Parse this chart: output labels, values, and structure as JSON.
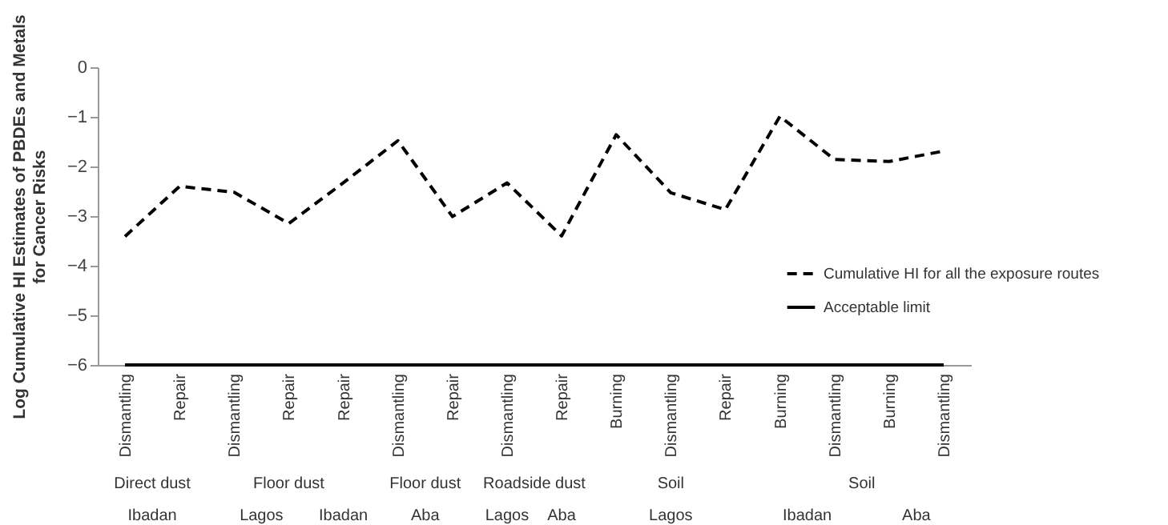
{
  "chart_data": {
    "type": "line",
    "ylabel": "Log Cumulative HI Estimates of PBDEs and Metals\nfor  Cancer Risks",
    "categories": [
      "Dismantling",
      "Repair",
      "Dismantling",
      "Repair",
      "Repair",
      "Dismantling",
      "Repair",
      "Dismantling",
      "Repair",
      "Burning",
      "Dismantling",
      "Repair",
      "Burning",
      "Dismantling",
      "Burning",
      "Dismantling"
    ],
    "series": [
      {
        "name": "Cumulative HI for all the exposure routes",
        "color": "#000000",
        "line_style": "dashed",
        "values": [
          -3.41,
          -2.4,
          -2.52,
          -3.15,
          -2.33,
          -1.48,
          -3.01,
          -2.33,
          -3.4,
          -1.36,
          -2.53,
          -2.87,
          -0.99,
          -1.86,
          -1.9,
          -1.69
        ]
      },
      {
        "name": "Acceptable limit",
        "color": "#000000",
        "line_style": "solid",
        "values": [
          -6,
          -6,
          -6,
          -6,
          -6,
          -6,
          -6,
          -6,
          -6,
          -6,
          -6,
          -6,
          -6,
          -6,
          -6,
          -6
        ]
      }
    ],
    "ylim": [
      -6,
      0
    ],
    "yticks": [
      0,
      -1,
      -2,
      -3,
      -4,
      -5,
      -6
    ],
    "grid": false,
    "legend": "right",
    "annotations": [
      "Direct dust",
      "Floor dust",
      "Floor dust",
      "Roadside dust",
      "Soil",
      "Soil",
      "Ibadan",
      "Lagos",
      "Ibadan",
      "Aba",
      "Lagos",
      "Aba",
      "Lagos",
      "Ibadan",
      "Aba"
    ]
  }
}
